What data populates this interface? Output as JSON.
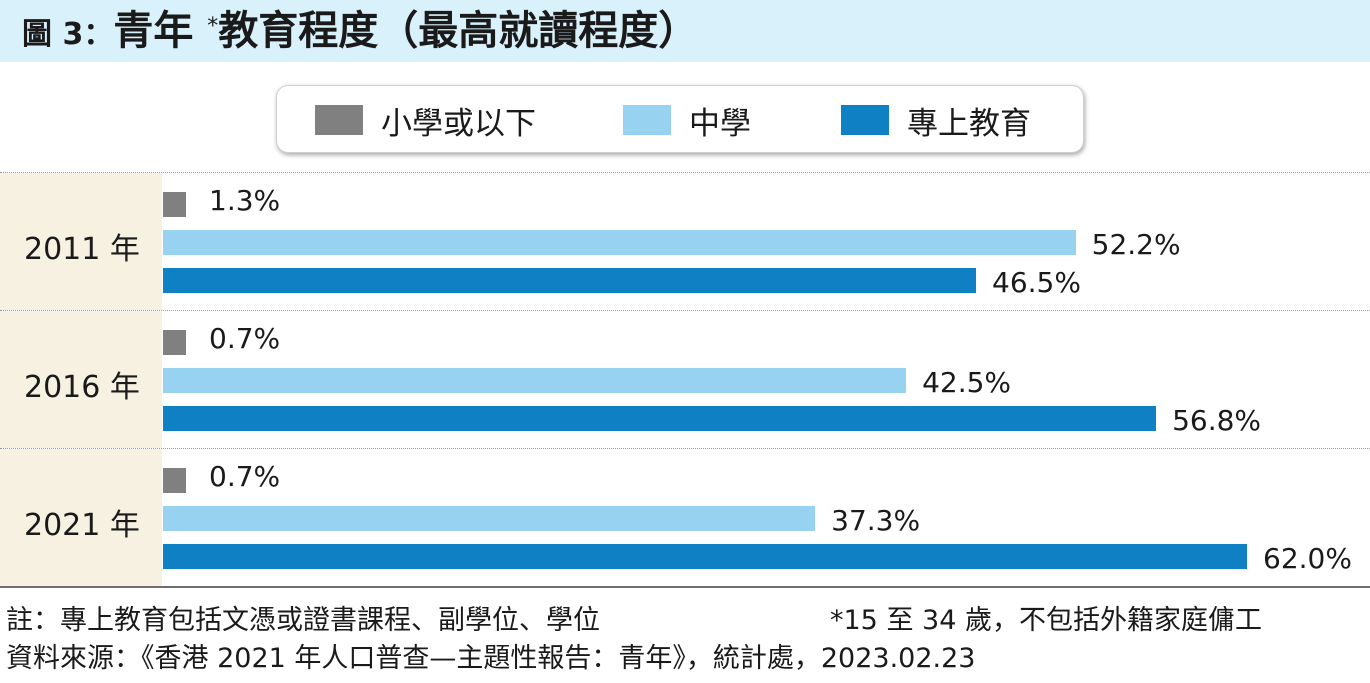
{
  "header": {
    "fig_label": "圖 3：",
    "title_main": "青年",
    "title_star": "*",
    "title_rest": "教育程度（最高就讀程度）"
  },
  "legend": {
    "items": [
      {
        "label": "小學或以下",
        "color": "#808080"
      },
      {
        "label": "中學",
        "color": "#97d3f0"
      },
      {
        "label": "專上教育",
        "color": "#0f80c3"
      }
    ]
  },
  "chart_data": {
    "type": "bar",
    "orientation": "horizontal",
    "title": "圖 3：青年 * 教育程度（最高就讀程度）",
    "categories": [
      "2011 年",
      "2016 年",
      "2021 年"
    ],
    "series": [
      {
        "name": "小學或以下",
        "color": "#808080",
        "values": [
          1.3,
          0.7,
          0.7
        ],
        "labels": [
          "1.3%",
          "0.7%",
          "0.7%"
        ]
      },
      {
        "name": "中學",
        "color": "#97d3f0",
        "values": [
          52.2,
          42.5,
          37.3
        ],
        "labels": [
          "52.2%",
          "42.5%",
          "37.3%"
        ]
      },
      {
        "name": "專上教育",
        "color": "#0f80c3",
        "values": [
          46.5,
          56.8,
          62.0
        ],
        "labels": [
          "46.5%",
          "56.8%",
          "62.0%"
        ]
      }
    ],
    "xlim": [
      0,
      62.0
    ],
    "grid": false,
    "legend_position": "top"
  },
  "footnotes": {
    "note_left": "註：專上教育包括文憑或證書課程、副學位、學位",
    "note_right": "*15 至 34 歲，不包括外籍家庭傭工",
    "source": "資料來源：《香港 2021 年人口普查—主題性報告：青年》，統計處，2023.02.23"
  }
}
